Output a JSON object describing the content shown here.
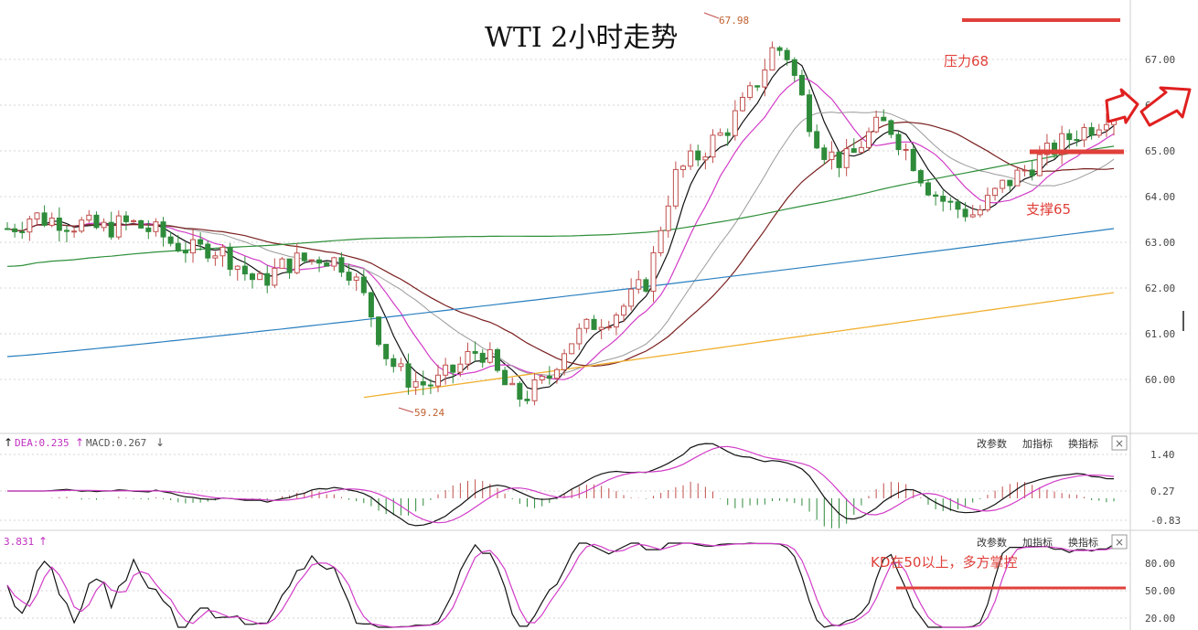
{
  "title": "WTI 2小时走势",
  "colors": {
    "up": "#c0504d",
    "down": "#2e8b3a",
    "ma_black": "#111111",
    "ma_magenta": "#d23cc8",
    "ma_gray": "#9a9a9a",
    "ma_darkred": "#7a1f1f",
    "ma_green": "#2f8f3a",
    "ma_blue": "#2a7fbf",
    "ma_orange": "#f0b030",
    "annotation": "#e0403a",
    "grid": "#d6d6d6"
  },
  "axis": {
    "price_ticks": [
      "67.00",
      "66.00",
      "65.00",
      "64.00",
      "63.00",
      "62.00",
      "61.00",
      "60.00"
    ],
    "macd_ticks": [
      "1.40",
      "0.27",
      "-0.83"
    ],
    "kd_ticks": [
      "80.00",
      "50.00",
      "20.00"
    ]
  },
  "annotations": {
    "high_label": "67.98",
    "low_label": "59.24",
    "resistance": "压力68",
    "support": "支撑65",
    "kd_note": "KD在50以上，多方掌控"
  },
  "macd_panel": {
    "legend_dea": "DEA:0.235",
    "legend_macd": "MACD:0.267",
    "buttons": [
      "改参数",
      "加指标",
      "换指标"
    ],
    "close": "×"
  },
  "kd_panel": {
    "legend_value": "3.831",
    "buttons": [
      "改参数",
      "加指标",
      "换指标"
    ],
    "close": "×"
  },
  "chart_data": {
    "type": "candlestick",
    "period": "2小时",
    "ylim": [
      59.0,
      68.0
    ],
    "high": 67.98,
    "low": 59.24,
    "resistance_level": 68,
    "support_level": 65,
    "series": [
      {
        "values": [
          63.3,
          63.4,
          63.6,
          63.5,
          63.5,
          63.4,
          63.4,
          63.3,
          63.3,
          63.4,
          63.4,
          63.3,
          63.2,
          63.0,
          62.9,
          62.8,
          62.9,
          62.8,
          62.6,
          62.3,
          62.1,
          62.3,
          62.5,
          62.6,
          62.6,
          62.7,
          62.6,
          62.5,
          62.0,
          61.4,
          60.6,
          60.2,
          60.0,
          59.9,
          59.9,
          60.1,
          60.3,
          60.6,
          60.6,
          60.1,
          59.7,
          59.6,
          59.8,
          60.0,
          60.6,
          60.9,
          61.1,
          61.3,
          61.4,
          61.6,
          61.9,
          62.2,
          63.4,
          64.4,
          64.7,
          64.9,
          65.2,
          65.4,
          65.8,
          66.2,
          66.7,
          67.3,
          67.1,
          66.3,
          65.5,
          65.0,
          64.8,
          64.8,
          65.2,
          65.5,
          65.6,
          65.2,
          64.8,
          64.3,
          64.0,
          63.8,
          63.7,
          63.6,
          63.9,
          64.2,
          64.4,
          64.6,
          64.8,
          65.0,
          65.2,
          65.4,
          65.5,
          65.7,
          66.0
        ]
      },
      {
        "values": [
          63.1,
          63.3,
          63.4,
          63.5,
          63.4,
          63.4,
          63.4,
          63.3,
          63.2,
          63.2,
          63.1,
          63.0,
          62.9,
          62.7,
          62.5,
          62.4,
          62.3,
          62.3,
          62.3,
          62.2,
          62.1,
          61.9,
          61.7,
          61.4,
          61.1,
          60.8,
          60.5,
          60.3,
          60.2,
          60.1,
          60.1,
          60.2,
          60.3,
          60.4,
          60.4,
          60.5,
          60.6,
          60.9,
          61.3,
          61.9,
          62.8,
          63.6,
          64.4,
          65.1,
          65.7,
          66.3,
          66.6,
          66.6,
          66.2,
          65.7,
          65.3,
          65.1,
          65.1,
          65.2,
          65.3,
          65.3,
          65.2,
          65.0,
          64.8,
          64.5,
          64.3,
          64.2,
          64.3,
          64.4,
          64.6,
          64.8,
          65.0,
          65.2,
          65.4,
          65.6
        ]
      }
    ]
  }
}
